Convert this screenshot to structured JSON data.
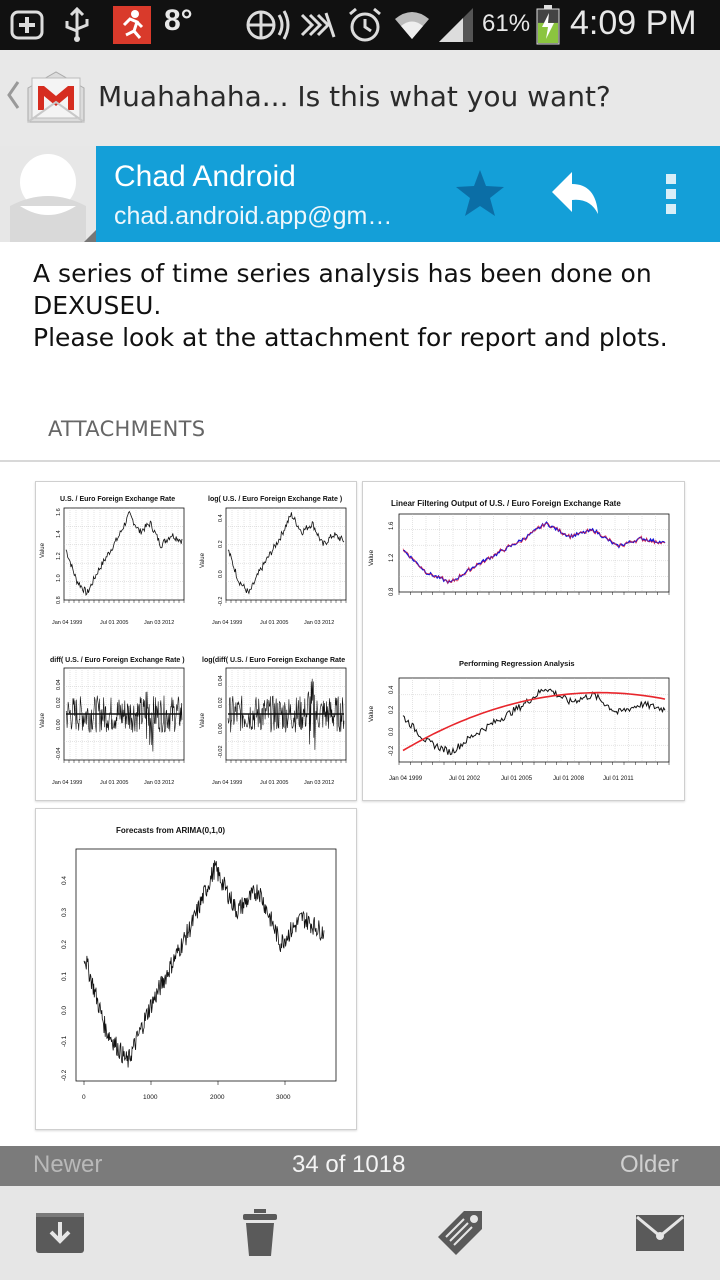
{
  "status_bar": {
    "temperature": "8°",
    "battery_percent": "61%",
    "battery_level": 0.61,
    "time": "4:09 PM",
    "icons": [
      "add-icon",
      "usb-icon",
      "running-app-icon",
      "location-icon",
      "nfc-icon",
      "silent-icon",
      "alarm-icon",
      "wifi-icon",
      "signal-icon",
      "battery-charging-icon"
    ]
  },
  "action_bar": {
    "subject": "Muahahaha... Is this what you want?",
    "app_icon": "gmail-icon"
  },
  "sender": {
    "name": "Chad Android",
    "email": "chad.android.app@gm…",
    "icons": [
      "avatar-icon",
      "star-icon",
      "reply-icon",
      "overflow-menu-icon"
    ],
    "colors": {
      "bar": "#149fd8",
      "star": "#0b6ea6"
    }
  },
  "message": {
    "lines": [
      "A series of time series analysis has been done on",
      "DEXUSEU.",
      "Please look at the attachment for report and plots."
    ]
  },
  "attachments": {
    "label": "ATTACHMENTS",
    "thumbs": [
      {
        "panels": [
          {
            "title": "U.S. / Euro Foreign Exchange Rate",
            "ylabel": "Value",
            "yticks": [
              "0.8",
              "1.0",
              "1.2",
              "1.4",
              "1.6"
            ],
            "xticks": [
              "Jan 04 1999",
              "Jul 01 2005",
              "Jan 03 2012"
            ]
          },
          {
            "title": "log( U.S. / Euro Foreign Exchange Rate )",
            "ylabel": "Value",
            "yticks": [
              "-0.2",
              "0.0",
              "0.2",
              "0.4"
            ],
            "xticks": [
              "Jan 04 1999",
              "Jul 01 2005",
              "Jan 03 2012"
            ]
          },
          {
            "title": "diff( U.S. / Euro Foreign Exchange Rate )",
            "ylabel": "Value",
            "yticks": [
              "-0.04",
              "0.00",
              "0.02",
              "0.04"
            ],
            "xticks": [
              "Jan 04 1999",
              "Jul 01 2005",
              "Jan 03 2012"
            ]
          },
          {
            "title": "log(diff( U.S. / Euro Foreign Exchange Rate",
            "ylabel": "Value",
            "yticks": [
              "-0.02",
              "0.00",
              "0.02",
              "0.04"
            ],
            "xticks": [
              "Jan 04 1999",
              "Jul 01 2005",
              "Jan 03 2012"
            ]
          }
        ]
      },
      {
        "panels": [
          {
            "title": "Linear Filtering Output of  U.S. / Euro Foreign Exchange Rate",
            "ylabel": "Value",
            "yticks": [
              "0.8",
              "1.2",
              "1.6"
            ],
            "xticks": []
          },
          {
            "title": "Performing Regression Analysis",
            "ylabel": "Value",
            "yticks": [
              "-0.2",
              "0.0",
              "0.2",
              "0.4"
            ],
            "xticks": [
              "Jan 04 1999",
              "Jul 01 2002",
              "Jul 01 2005",
              "Jul 01 2008",
              "Jul 01 2011"
            ]
          }
        ]
      },
      {
        "panels": [
          {
            "title": "Forecasts from ARIMA(0,1,0)",
            "ylabel": "",
            "yticks": [
              "-0.2",
              "-0.1",
              "0.0",
              "0.1",
              "0.2",
              "0.3",
              "0.4"
            ],
            "xticks": [
              "0",
              "1000",
              "2000",
              "3000"
            ]
          }
        ]
      }
    ]
  },
  "pager": {
    "newer": "Newer",
    "position": "34 of 1018",
    "older": "Older"
  },
  "toolbar": {
    "icons": [
      "archive-icon",
      "delete-icon",
      "label-icon",
      "mark-unread-icon"
    ]
  }
}
